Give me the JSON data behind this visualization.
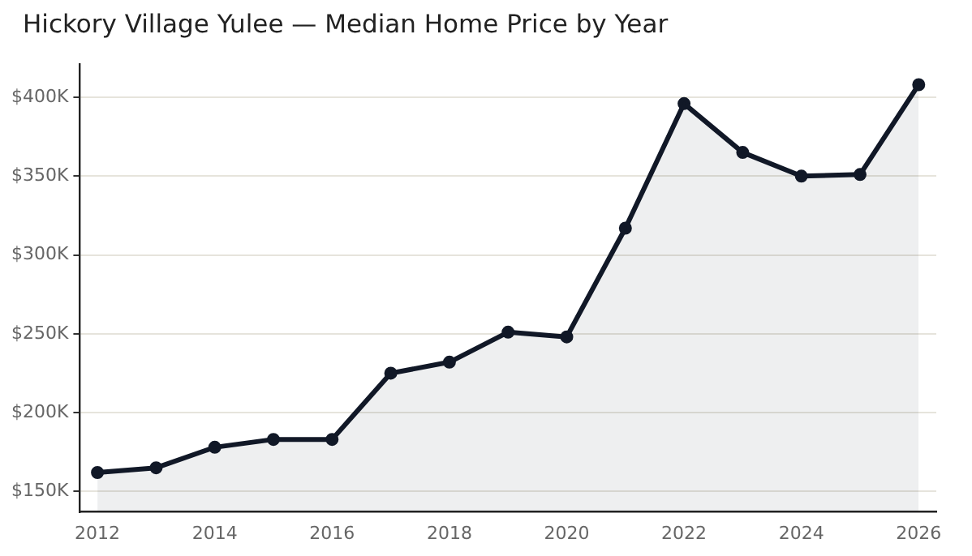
{
  "chart_data": {
    "type": "area",
    "title": "Hickory Village Yulee — Median Home Price by Year",
    "x": [
      2012,
      2013,
      2014,
      2015,
      2016,
      2017,
      2018,
      2019,
      2020,
      2021,
      2022,
      2023,
      2024,
      2025,
      2026
    ],
    "series": [
      {
        "color": "#111827",
        "values": [
          162,
          165,
          178,
          183,
          183,
          225,
          232,
          251,
          248,
          317,
          396,
          365,
          350,
          351,
          408
        ]
      }
    ],
    "xlim": [
      2011.7,
      2026.3
    ],
    "xticks": [
      2012,
      2014,
      2016,
      2018,
      2020,
      2022,
      2024,
      2026
    ],
    "ylim": [
      137,
      421
    ],
    "yticks": [
      {
        "value": 150,
        "label": "$150K"
      },
      {
        "value": 200,
        "label": "$200K"
      },
      {
        "value": 250,
        "label": "$250K"
      },
      {
        "value": 300,
        "label": "$300K"
      },
      {
        "value": 350,
        "label": "$350K"
      },
      {
        "value": 400,
        "label": "$400K"
      }
    ],
    "grid": "y",
    "legend": false,
    "marker": "circle",
    "line_style": "solid"
  }
}
